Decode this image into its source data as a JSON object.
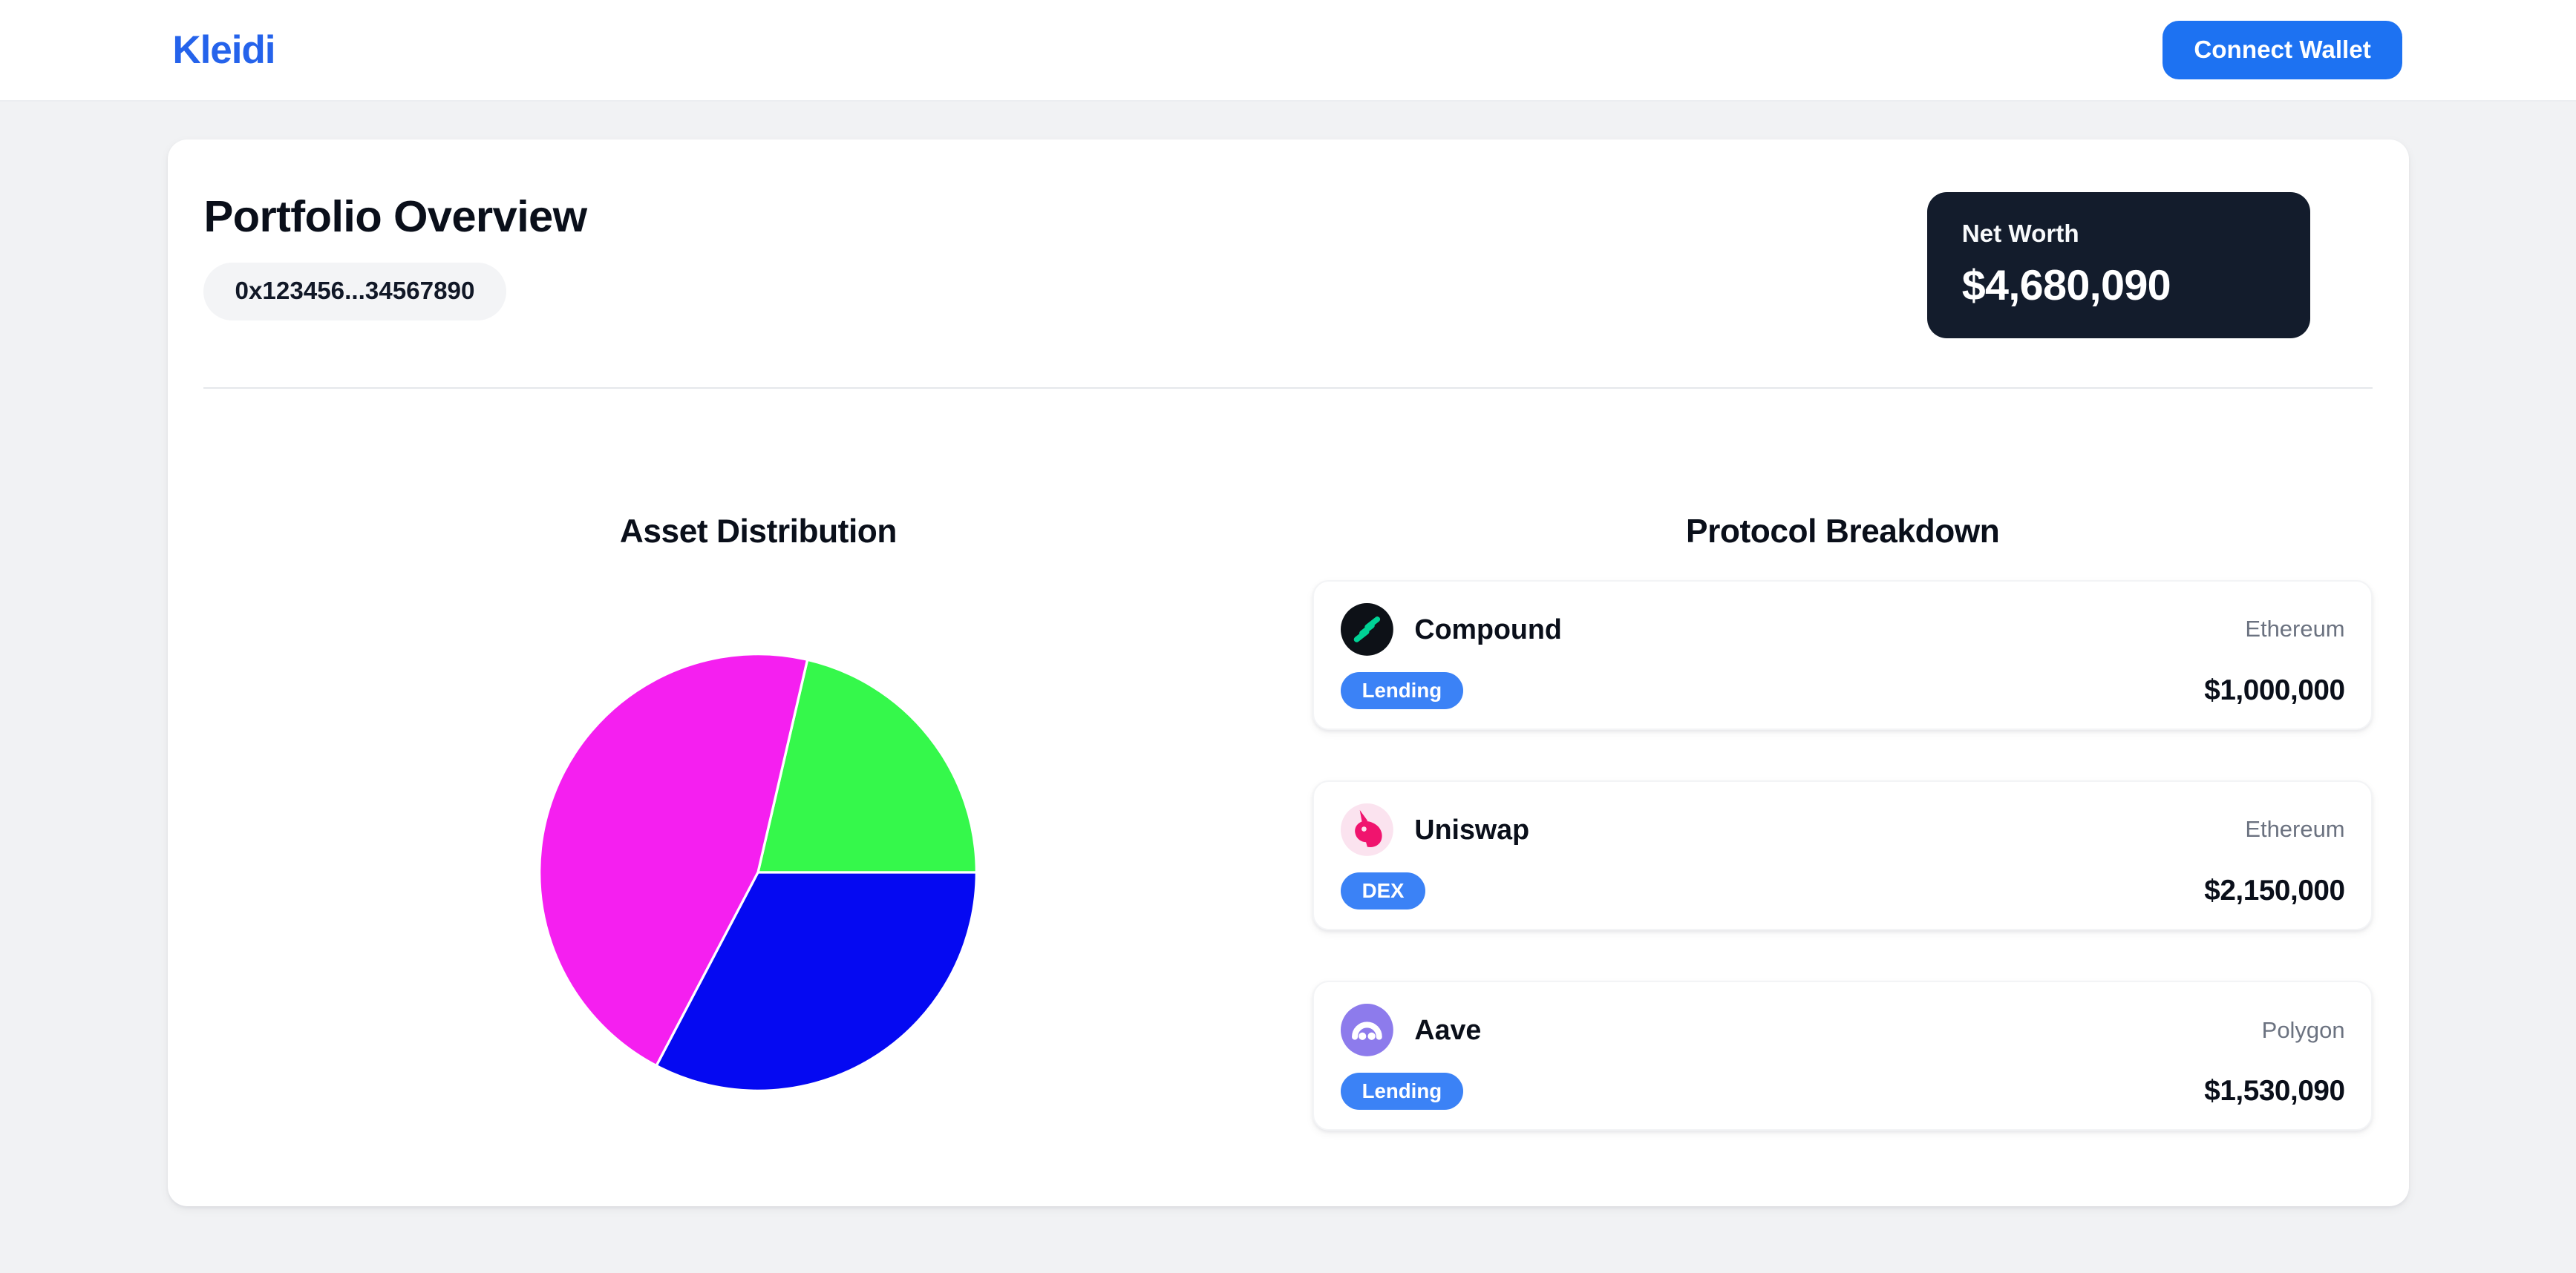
{
  "header": {
    "logo": "Kleidi",
    "connect_wallet_label": "Connect Wallet"
  },
  "portfolio": {
    "title": "Portfolio Overview",
    "wallet_address": "0x123456...34567890",
    "net_worth_label": "Net Worth",
    "net_worth_value": "$4,680,090"
  },
  "chart_data": {
    "type": "pie",
    "title": "Asset Distribution",
    "total": 4680090,
    "slices": [
      {
        "label": "Compound",
        "value": 1000000,
        "color": "#35F84B"
      },
      {
        "label": "Uniswap",
        "value": 2150000,
        "color": "#F51FF0"
      },
      {
        "label": "Aave",
        "value": 1530090,
        "color": "#0509F2"
      }
    ],
    "start_angle_deg": 90,
    "direction": "counterclockwise",
    "legend": "none",
    "data_labels": "none"
  },
  "protocols": {
    "title": "Protocol Breakdown",
    "items": [
      {
        "name": "Compound",
        "network": "Ethereum",
        "category": "Lending",
        "value": "$1,000,000"
      },
      {
        "name": "Uniswap",
        "network": "Ethereum",
        "category": "DEX",
        "value": "$2,150,000"
      },
      {
        "name": "Aave",
        "network": "Polygon",
        "category": "Lending",
        "value": "$1,530,090"
      }
    ]
  },
  "colors": {
    "logo_blue": "#2563EB",
    "button_blue": "#1D72F2",
    "badge_blue": "#3B82F6",
    "net_worth_bg": "#131C2C",
    "page_bg": "#F1F2F4",
    "compound_brand": "#00D395",
    "uniswap_brand": "#F0146E",
    "aave_brand": "#8D7BEC"
  }
}
